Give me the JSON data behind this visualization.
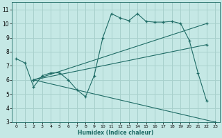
{
  "xlabel": "Humidex (Indice chaleur)",
  "bg_color": "#c5e8e5",
  "grid_color": "#a8d0cc",
  "line_color": "#1e6b65",
  "xlim": [
    -0.5,
    23.5
  ],
  "ylim": [
    3,
    11.5
  ],
  "yticks": [
    3,
    4,
    5,
    6,
    7,
    8,
    9,
    10,
    11
  ],
  "xticks": [
    0,
    1,
    2,
    3,
    4,
    5,
    6,
    7,
    8,
    9,
    10,
    11,
    12,
    13,
    14,
    15,
    16,
    17,
    18,
    19,
    20,
    21,
    22,
    23
  ],
  "series": [
    {
      "x": [
        0,
        1,
        2,
        3,
        4,
        5,
        6,
        7,
        8,
        9,
        10,
        11,
        12,
        13,
        14,
        15,
        16,
        17,
        18,
        19,
        20,
        21,
        22
      ],
      "y": [
        7.5,
        7.2,
        5.5,
        6.3,
        6.5,
        6.5,
        6.0,
        5.3,
        4.8,
        6.3,
        9.0,
        10.7,
        10.4,
        10.2,
        10.7,
        10.15,
        10.1,
        10.1,
        10.15,
        10.0,
        8.8,
        6.5,
        4.5
      ]
    },
    {
      "x": [
        2,
        22
      ],
      "y": [
        6.0,
        10.0
      ]
    },
    {
      "x": [
        2,
        22
      ],
      "y": [
        6.0,
        8.5
      ]
    },
    {
      "x": [
        2,
        23
      ],
      "y": [
        6.0,
        3.0
      ]
    }
  ]
}
